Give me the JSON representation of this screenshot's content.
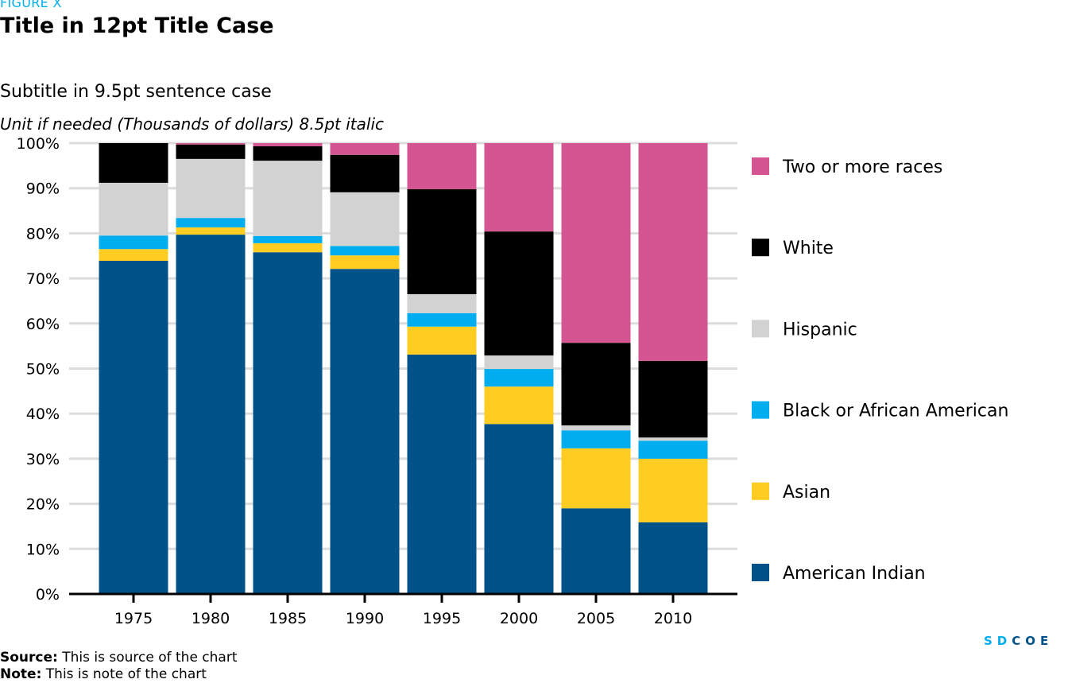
{
  "header": {
    "figure_label": "FIGURE X",
    "title": "Title in 12pt Title Case",
    "subtitle": "Subtitle in 9.5pt sentence case",
    "unit": "Unit if needed (Thousands of dollars) 8.5pt italic"
  },
  "footer": {
    "source_label": "Source:",
    "source_text": "This is source of the chart",
    "note_label": "Note:",
    "note_text": "This is note of the chart"
  },
  "logo": {
    "text": "SDCOE",
    "part1": "SD",
    "part2": "COE",
    "color1": "#00aeef",
    "color2": "#005288"
  },
  "chart_data": {
    "type": "bar",
    "stacked": true,
    "title": "Title in 12pt Title Case",
    "subtitle": "Subtitle in 9.5pt sentence case",
    "xlabel": "",
    "ylabel": "",
    "ylim": [
      0,
      100
    ],
    "y_ticks": [
      0,
      10,
      20,
      30,
      40,
      50,
      60,
      70,
      80,
      90,
      100
    ],
    "y_tick_labels": [
      "0%",
      "10%",
      "20%",
      "30%",
      "40%",
      "50%",
      "60%",
      "70%",
      "80%",
      "90%",
      "100%"
    ],
    "grid": true,
    "legend_position": "right",
    "categories": [
      "1975",
      "1980",
      "1985",
      "1990",
      "1995",
      "2000",
      "2005",
      "2010"
    ],
    "series": [
      {
        "name": "American Indian",
        "color": "#005288",
        "values": [
          73.9,
          79.7,
          75.8,
          72.1,
          53.1,
          37.7,
          19.0,
          15.9
        ]
      },
      {
        "name": "Asian",
        "color": "#ffcc22",
        "values": [
          2.6,
          1.6,
          2.0,
          3.0,
          6.2,
          8.3,
          13.3,
          14.1
        ]
      },
      {
        "name": "Black or African American",
        "color": "#00aeef",
        "values": [
          3.0,
          2.1,
          1.6,
          2.1,
          3.0,
          3.9,
          4.0,
          4.0
        ]
      },
      {
        "name": "Hispanic",
        "color": "#d2d2d2",
        "values": [
          11.7,
          13.1,
          16.7,
          11.9,
          4.2,
          3.0,
          1.1,
          0.7
        ]
      },
      {
        "name": "White",
        "color": "#000000",
        "values": [
          8.8,
          3.2,
          3.2,
          8.3,
          23.3,
          27.5,
          18.3,
          17.0
        ]
      },
      {
        "name": "Two or more races",
        "color": "#d55593",
        "values": [
          0.0,
          0.3,
          0.7,
          2.6,
          10.2,
          19.6,
          44.3,
          48.3
        ]
      }
    ],
    "legend_order": [
      "Two or more races",
      "White",
      "Hispanic",
      "Black or African American",
      "Asian",
      "American Indian"
    ]
  }
}
